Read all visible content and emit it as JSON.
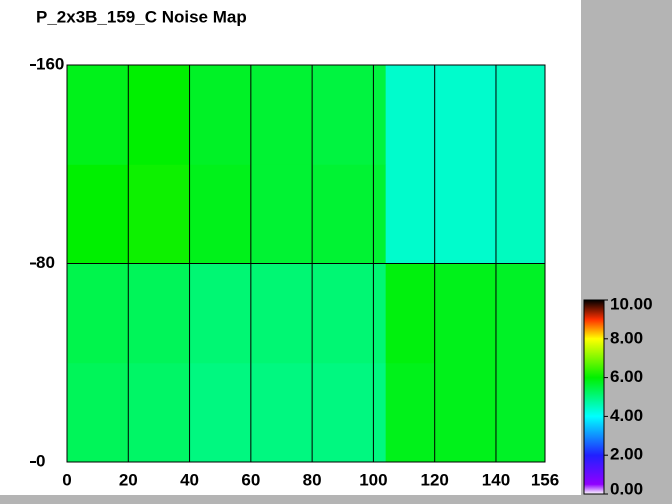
{
  "chart_data": {
    "type": "heatmap",
    "title": "P_2x3B_159_C Noise Map",
    "x_edges": [
      0,
      20,
      40,
      60,
      80,
      104,
      120,
      140,
      156
    ],
    "y_edges": [
      0,
      40,
      80,
      120,
      160
    ],
    "z": [
      [
        5.3,
        5.2,
        5.0,
        5.0,
        5.0,
        5.8,
        5.8,
        5.7
      ],
      [
        5.4,
        5.3,
        5.1,
        5.1,
        5.1,
        5.9,
        5.8,
        5.7
      ],
      [
        6.0,
        6.1,
        5.8,
        5.6,
        5.6,
        4.4,
        4.4,
        4.5
      ],
      [
        5.8,
        6.0,
        5.7,
        5.6,
        5.5,
        4.4,
        4.4,
        4.5
      ]
    ],
    "xlim": [
      0,
      156
    ],
    "ylim": [
      0,
      160
    ],
    "xticks": [
      0,
      20,
      40,
      60,
      80,
      100,
      120,
      140,
      156
    ],
    "yticks": [
      0,
      80,
      160
    ],
    "grid": true,
    "clim": [
      0,
      10
    ],
    "colorbar_ticks": [
      {
        "value": 0,
        "label": "0.00"
      },
      {
        "value": 2,
        "label": "2.00"
      },
      {
        "value": 4,
        "label": "4.00"
      },
      {
        "value": 6,
        "label": "6.00"
      },
      {
        "value": 8,
        "label": "8.00"
      },
      {
        "value": 10,
        "label": "10.00"
      }
    ],
    "colormap": [
      [
        0,
        "#ffffff"
      ],
      [
        0.5,
        "#9000ff"
      ],
      [
        2,
        "#2020ff"
      ],
      [
        4,
        "#00ffff"
      ],
      [
        6,
        "#00f000"
      ],
      [
        8,
        "#ffff00"
      ],
      [
        9,
        "#ff3000"
      ],
      [
        10,
        "#000000"
      ]
    ]
  }
}
